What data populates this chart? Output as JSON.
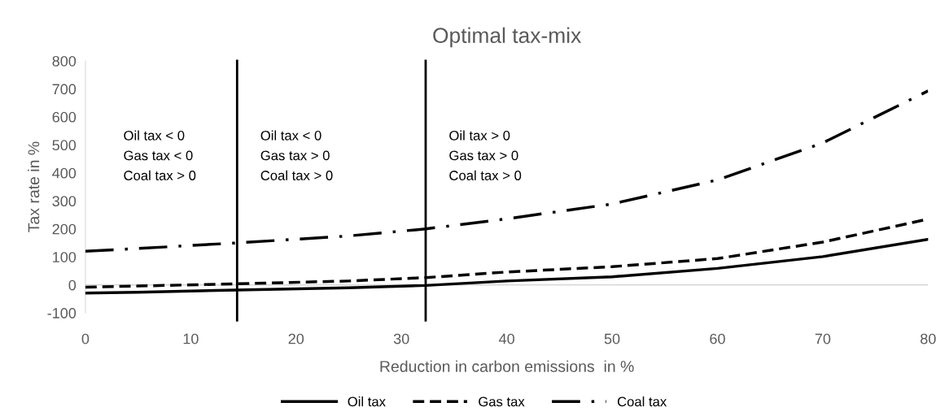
{
  "chart_data": {
    "type": "line",
    "title": "Optimal tax-mix",
    "xlabel": "Reduction in carbon emissions  in %",
    "ylabel": "Tax rate in %",
    "x": [
      0,
      5,
      14.4,
      25,
      32.3,
      40,
      50,
      60,
      70,
      80
    ],
    "series": [
      {
        "name": "Oil tax",
        "color": "#000000",
        "line_style": "solid",
        "values": [
          -29,
          -26,
          -18,
          -10,
          -2,
          14,
          29,
          59,
          101,
          163
        ]
      },
      {
        "name": "Gas tax",
        "color": "#000000",
        "line_style": "dashed",
        "values": [
          -8,
          -4,
          4,
          14,
          26,
          46,
          65,
          94,
          153,
          235
        ]
      },
      {
        "name": "Coal tax",
        "color": "#000000",
        "line_style": "dashdot",
        "values": [
          120,
          130,
          150,
          175,
          200,
          236,
          289,
          375,
          507,
          693
        ]
      }
    ],
    "xlim": [
      0,
      80
    ],
    "xticks": [
      0,
      10,
      20,
      30,
      40,
      50,
      60,
      70,
      80
    ],
    "ylim": [
      -100,
      800
    ],
    "yticks": [
      -100,
      0,
      100,
      200,
      300,
      400,
      500,
      600,
      700,
      800
    ],
    "ref_lines": [
      {
        "axis": "y",
        "value": 0,
        "color": "#d9d9d9"
      },
      {
        "axis": "x",
        "value": 14.4,
        "color": "#000000"
      },
      {
        "axis": "x",
        "value": 32.3,
        "color": "#000000"
      }
    ],
    "annotations": [
      "Oil tax < 0\nGas tax < 0\nCoal tax > 0",
      "Oil tax < 0\nGas tax > 0\nCoal tax > 0",
      "Oil tax > 0\nGas tax > 0\nCoal tax > 0"
    ],
    "grid": false,
    "legend": "bottom",
    "marker": "none"
  }
}
